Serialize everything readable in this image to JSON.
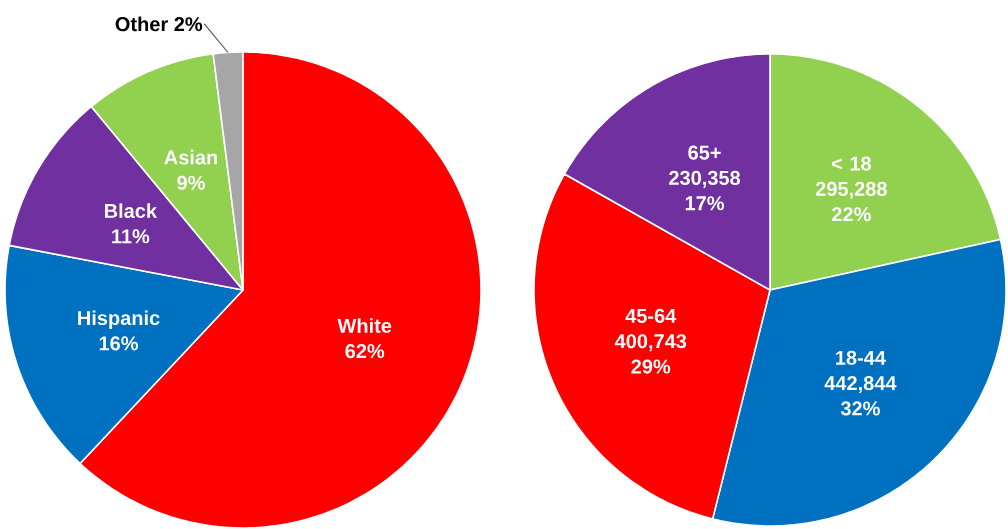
{
  "chart_data": [
    {
      "type": "pie",
      "categories": [
        "White",
        "Hispanic",
        "Black",
        "Asian",
        "Other"
      ],
      "values": [
        62,
        16,
        11,
        9,
        2
      ],
      "value_labels": [
        "62%",
        "16%",
        "11%",
        "9%",
        "2%"
      ],
      "colors": [
        "#ff0000",
        "#0070c0",
        "#7030a0",
        "#92d050",
        "#a6a6a6"
      ]
    },
    {
      "type": "pie",
      "categories": [
        "< 18",
        "18-44",
        "45-64",
        "65+"
      ],
      "values": [
        295288,
        442844,
        400743,
        230358
      ],
      "value_labels": [
        "295,288 22%",
        "442,844 32%",
        "400,743 29%",
        "230,358 17%"
      ],
      "colors": [
        "#92d050",
        "#0070c0",
        "#ff0000",
        "#7030a0"
      ]
    }
  ]
}
